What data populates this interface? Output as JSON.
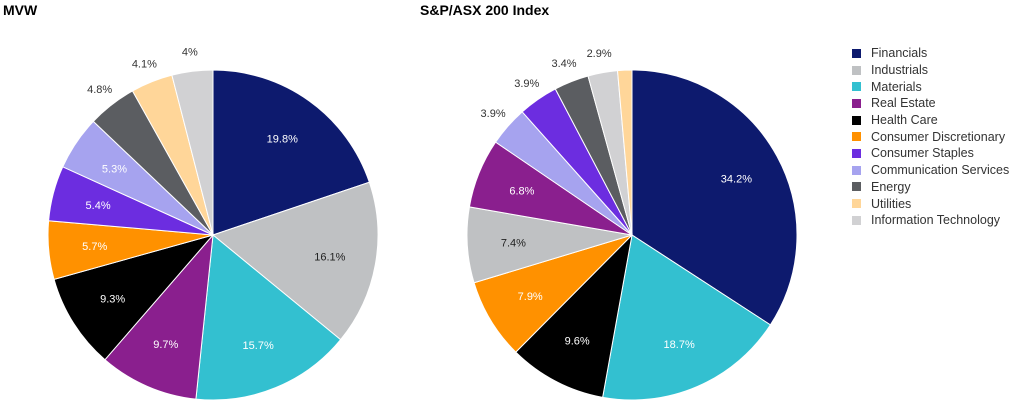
{
  "colors": {
    "Financials": "#0d1a6e",
    "Industrials": "#bfc1c3",
    "Materials": "#33c0d0",
    "Real Estate": "#8a1f8e",
    "Health Care": "#000000",
    "Consumer Discretionary": "#ff9100",
    "Consumer Staples": "#6c2de0",
    "Communication Services": "#a6a3ef",
    "Energy": "#5b5d61",
    "Utilities": "#ffd699",
    "Information Technology": "#d1d1d3"
  },
  "legend": [
    "Financials",
    "Industrials",
    "Materials",
    "Real Estate",
    "Health Care",
    "Consumer Discretionary",
    "Consumer Staples",
    "Communication Services",
    "Energy",
    "Utilities",
    "Information Technology"
  ],
  "chart_data": [
    {
      "type": "pie",
      "title": "MVW",
      "slices": [
        {
          "label": "Financials",
          "value": 19.8,
          "text": "19.8%"
        },
        {
          "label": "Industrials",
          "value": 16.1,
          "text": "16.1%"
        },
        {
          "label": "Materials",
          "value": 15.7,
          "text": "15.7%"
        },
        {
          "label": "Real Estate",
          "value": 9.7,
          "text": "9.7%"
        },
        {
          "label": "Health Care",
          "value": 9.3,
          "text": "9.3%"
        },
        {
          "label": "Consumer Discretionary",
          "value": 5.7,
          "text": "5.7%"
        },
        {
          "label": "Consumer Staples",
          "value": 5.4,
          "text": "5.4%"
        },
        {
          "label": "Communication Services",
          "value": 5.3,
          "text": "5.3%"
        },
        {
          "label": "Energy",
          "value": 4.8,
          "text": "4.8%"
        },
        {
          "label": "Utilities",
          "value": 4.1,
          "text": "4.1%"
        },
        {
          "label": "Information Technology",
          "value": 4.0,
          "text": "4%"
        }
      ]
    },
    {
      "type": "pie",
      "title": "S&P/ASX 200 Index",
      "slices": [
        {
          "label": "Financials",
          "value": 34.2,
          "text": "34.2%"
        },
        {
          "label": "Materials",
          "value": 18.7,
          "text": "18.7%"
        },
        {
          "label": "Health Care",
          "value": 9.6,
          "text": "9.6%"
        },
        {
          "label": "Consumer Discretionary",
          "value": 7.9,
          "text": "7.9%"
        },
        {
          "label": "Industrials",
          "value": 7.4,
          "text": "7.4%"
        },
        {
          "label": "Real Estate",
          "value": 6.8,
          "text": "6.8%"
        },
        {
          "label": "Communication Services",
          "value": 3.9,
          "text": "3.9%"
        },
        {
          "label": "Consumer Staples",
          "value": 3.9,
          "text": "3.9%"
        },
        {
          "label": "Energy",
          "value": 3.4,
          "text": "3.4%"
        },
        {
          "label": "Information Technology",
          "value": 2.9,
          "text": "2.9%"
        },
        {
          "label": "Utilities",
          "value": 1.4,
          "text": ""
        }
      ]
    }
  ]
}
